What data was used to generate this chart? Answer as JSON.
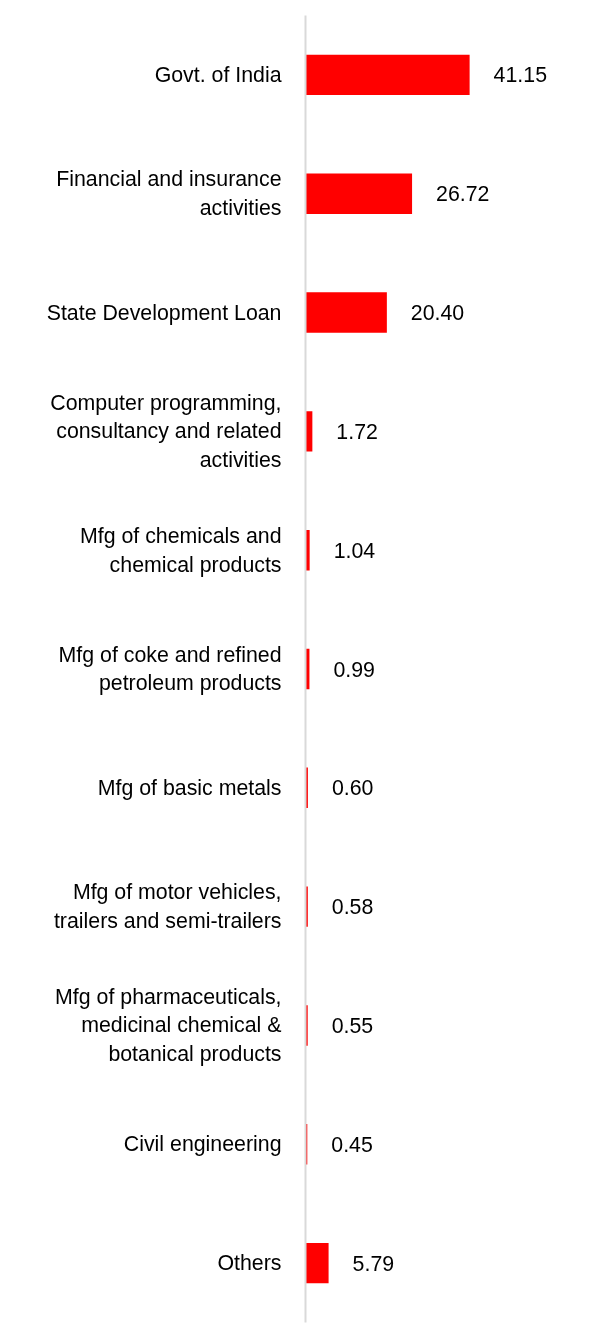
{
  "chart_data": {
    "type": "bar",
    "orientation": "horizontal",
    "categories": [
      "Govt. of India",
      "Financial and insurance activities",
      "State Development Loan",
      "Computer programming, consultancy and related activities",
      "Mfg of chemicals and chemical products",
      "Mfg of coke and refined petroleum products",
      "Mfg of basic metals",
      "Mfg of motor vehicles, trailers and semi-trailers",
      "Mfg of pharmaceuticals, medicinal chemical & botanical products",
      "Civil engineering",
      "Others"
    ],
    "values": [
      41.15,
      26.72,
      20.4,
      1.72,
      1.04,
      0.99,
      0.6,
      0.58,
      0.55,
      0.45,
      5.79
    ],
    "value_labels": [
      "41.15",
      "26.72",
      "20.40",
      "1.72",
      "1.04",
      "0.99",
      "0.60",
      "0.58",
      "0.55",
      "0.45",
      "5.79"
    ],
    "color": "#ff0000"
  }
}
